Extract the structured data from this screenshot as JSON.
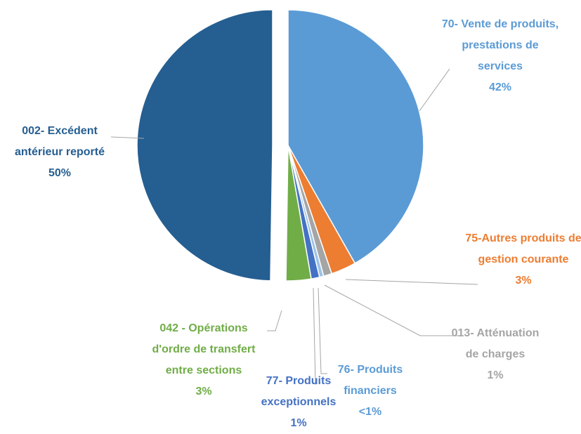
{
  "chart_data": {
    "type": "pie",
    "categories": [
      "70- Vente de produits, prestations de services",
      "75-Autres produits de gestion courante",
      "013- Atténuation de charges",
      "76- Produits financiers",
      "77- Produits exceptionnels",
      "042 - Opérations d'ordre de transfert entre sections",
      "002- Excédent antérieur reporté"
    ],
    "values": [
      42,
      3,
      1,
      0.5,
      1,
      3,
      50
    ],
    "value_labels": [
      "42%",
      "3%",
      "1%",
      "<1%",
      "1%",
      "3%",
      "50%"
    ],
    "colors": [
      "#5b9bd5",
      "#ed7d31",
      "#a5a5a5",
      "#9dc3e6",
      "#4472c4",
      "#70ad47",
      "#255e91"
    ],
    "label_colors": [
      "#5b9bd5",
      "#ed7d31",
      "#a5a5a5",
      "#5b9bd5",
      "#4472c4",
      "#70ad47",
      "#255e91"
    ],
    "exploded": [
      6
    ]
  }
}
